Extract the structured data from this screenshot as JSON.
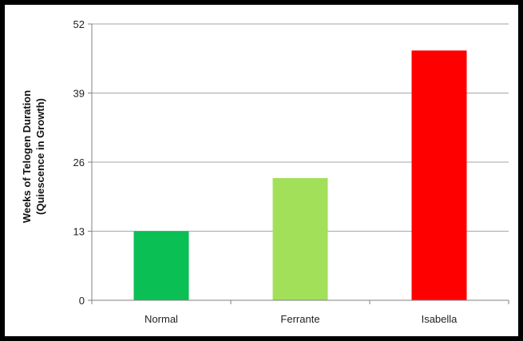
{
  "chart_data": {
    "type": "bar",
    "title": "",
    "xlabel": "",
    "ylabel_line1": "Weeks of Telogen Duration",
    "ylabel_line2": "(Quiescence in Growth)",
    "categories": [
      "Normal",
      "Ferrante",
      "Isabella"
    ],
    "values": [
      13,
      23,
      47
    ],
    "colors": [
      "#0abf53",
      "#a2e05a",
      "#ff0000"
    ],
    "ylim": [
      0,
      52
    ],
    "yticks": [
      0,
      13,
      26,
      39,
      52
    ],
    "grid": true,
    "legend": "none"
  }
}
